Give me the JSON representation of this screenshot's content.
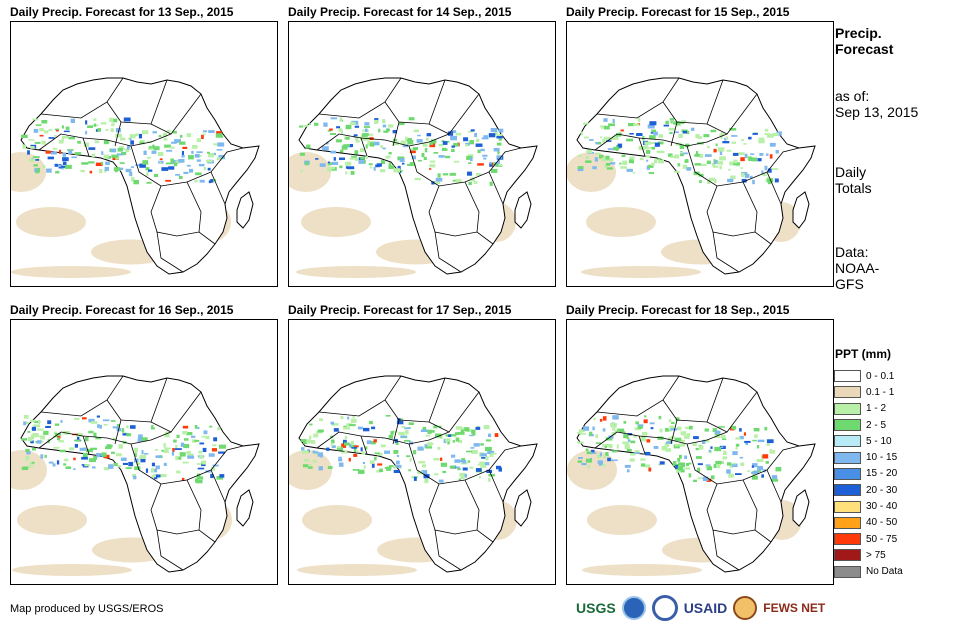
{
  "panels": [
    {
      "title": "Daily Precip. Forecast for 13 Sep., 2015"
    },
    {
      "title": "Daily Precip. Forecast for 14 Sep., 2015"
    },
    {
      "title": "Daily Precip. Forecast for 15 Sep., 2015"
    },
    {
      "title": "Daily Precip. Forecast for 16 Sep., 2015"
    },
    {
      "title": "Daily Precip. Forecast for 17 Sep., 2015"
    },
    {
      "title": "Daily Precip. Forecast for 18 Sep., 2015"
    }
  ],
  "side": {
    "title_line1": "Precip.",
    "title_line2": "Forecast",
    "asof_label": "as of:",
    "asof_date": "Sep 13, 2015",
    "daily_line1": "Daily",
    "daily_line2": "Totals",
    "data_line1": "Data:",
    "data_line2": "NOAA-",
    "data_line3": "GFS"
  },
  "legend": {
    "title": "PPT (mm)",
    "items": [
      {
        "label": "0 - 0.1",
        "color": "#ffffff"
      },
      {
        "label": "0.1 - 1",
        "color": "#ead8b8"
      },
      {
        "label": "1 - 2",
        "color": "#b8f0a8"
      },
      {
        "label": "2 - 5",
        "color": "#6ed96e"
      },
      {
        "label": "5 - 10",
        "color": "#b7ecf6"
      },
      {
        "label": "10 - 15",
        "color": "#7fb8ee"
      },
      {
        "label": "15 - 20",
        "color": "#4a8fe6"
      },
      {
        "label": "20 - 30",
        "color": "#1d5fd6"
      },
      {
        "label": "30 - 40",
        "color": "#ffe07a"
      },
      {
        "label": "40 - 50",
        "color": "#ffa21a"
      },
      {
        "label": "50 - 75",
        "color": "#ff3a0a"
      },
      {
        "label": "> 75",
        "color": "#a01818"
      },
      {
        "label": "No Data",
        "color": "#8c8c8c"
      }
    ]
  },
  "credit": "Map produced by USGS/EROS",
  "logos": {
    "usgs": "USGS",
    "usaid": "USAID",
    "fewsnet": "FEWS NET"
  }
}
